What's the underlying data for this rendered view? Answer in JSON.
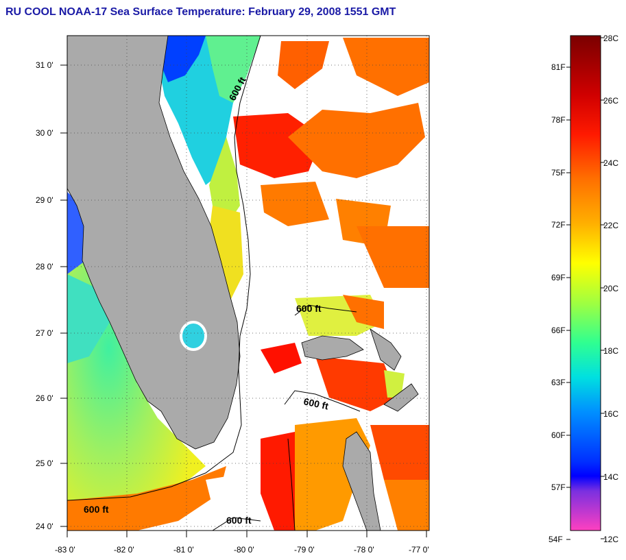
{
  "title": "RU COOL  NOAA-17  Sea Surface Temperature:  February 29, 2008 1551 GMT",
  "map": {
    "lat_labels": [
      "31 0'",
      "30 0'",
      "29 0'",
      "28 0'",
      "27 0'",
      "26 0'",
      "25 0'",
      "24 0'"
    ],
    "lon_labels": [
      "-83 0'",
      "-82 0'",
      "-81 0'",
      "-80 0'",
      "-79 0'",
      "-78 0'",
      "-77 0'"
    ],
    "isobath_labels": [
      "600 ft",
      "600 ft",
      "600 ft",
      "600 ft",
      "600 ft"
    ],
    "land_color": "#aaaaaa",
    "cloud_color": "#ffffff"
  },
  "colorbar": {
    "fahrenheit_labels": [
      "81F",
      "78F",
      "75F",
      "72F",
      "69F",
      "66F",
      "63F",
      "60F",
      "57F",
      "54F"
    ],
    "celsius_labels": [
      "28C",
      "26C",
      "24C",
      "22C",
      "20C",
      "18C",
      "16C",
      "14C",
      "12C"
    ],
    "colors": [
      "#7a0000",
      "#ff0000",
      "#ff7000",
      "#ffff00",
      "#7fff50",
      "#00e0e0",
      "#0070ff",
      "#0000ff",
      "#ff40c0"
    ]
  }
}
